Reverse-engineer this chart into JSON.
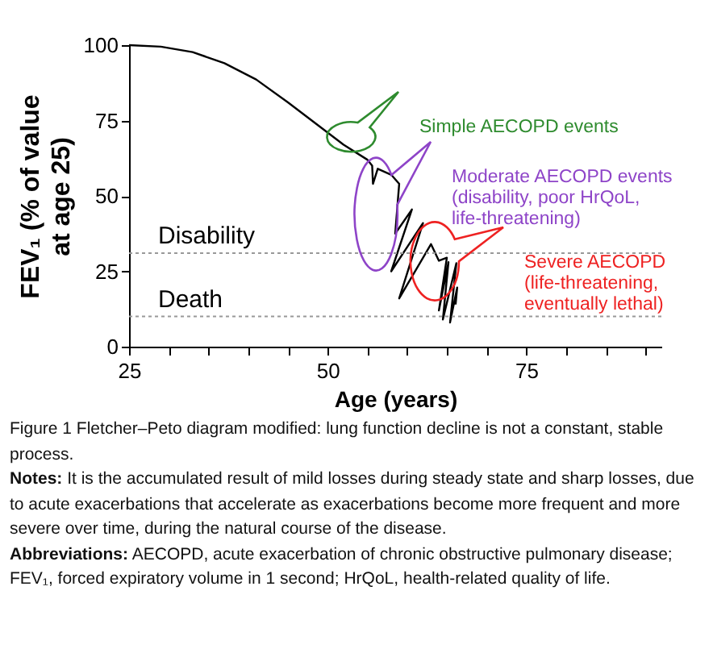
{
  "chart_data": {
    "type": "line",
    "title": "Figure 1 Fletcher–Peto diagram modified: lung function decline is not a constant, stable process.",
    "xlabel": "Age (years)",
    "ylabel": "FEV₁ (% of value at age 25)",
    "x": [
      25,
      29,
      33,
      37,
      41,
      45,
      49.5,
      52,
      55,
      55.6,
      55.7,
      56.3,
      58,
      59,
      58.5,
      60.6,
      58,
      62,
      59,
      63,
      64,
      65,
      64,
      65.2,
      64.5,
      66.2,
      65.4,
      66.3,
      66.1
    ],
    "series": [
      {
        "color": "#000000",
        "values": [
          100,
          99.5,
          97.7,
          94,
          88.6,
          81,
          72,
          67,
          62,
          60,
          54,
          59,
          57,
          54,
          37.5,
          45.5,
          25,
          41,
          16,
          34,
          28.5,
          29.5,
          12,
          28,
          9,
          27.7,
          8,
          19.6,
          14
        ]
      }
    ],
    "xlim": [
      25,
      92
    ],
    "xticks": [
      25,
      {
        "value": 30,
        "label": null
      },
      {
        "value": 35,
        "label": null
      },
      {
        "value": 40,
        "label": null
      },
      {
        "value": 45,
        "label": null
      },
      50,
      {
        "value": 55,
        "label": null
      },
      {
        "value": 60,
        "label": null
      },
      {
        "value": 65,
        "label": null
      },
      {
        "value": 70,
        "label": null
      },
      75,
      {
        "value": 80,
        "label": null
      },
      {
        "value": 85,
        "label": null
      },
      {
        "value": 90,
        "label": null
      }
    ],
    "ylim": [
      0,
      100
    ],
    "yticks": [
      0,
      25,
      50,
      75,
      100
    ],
    "grid": false,
    "line_style": "solid",
    "ref_lines": [
      {
        "axis": "y",
        "value": 31,
        "label": "Disability",
        "color": "#999999",
        "line_style": "dotted"
      },
      {
        "axis": "y",
        "value": 10,
        "label": "Death",
        "color": "#999999",
        "line_style": "dotted"
      }
    ],
    "annotations": [
      "Simple AECOPD events",
      "Moderate AECOPD events\n(disability, poor HrQoL,\nlife-threatening)",
      "Severe AECOPD\n(life-threatening,\neventually lethal)",
      "Notes: It is the accumulated result of mild losses during steady state and sharp losses, due to acute exacerbations that accelerate as exacerbations become more frequent and more severe over time, during the natural course of the disease.",
      "Abbreviations: AECOPD, acute exacerbation of chronic obstructive pulmonary disease; FEV₁, forced expiratory volume in 1 second; HrQoL, health-related quality of life."
    ]
  }
}
